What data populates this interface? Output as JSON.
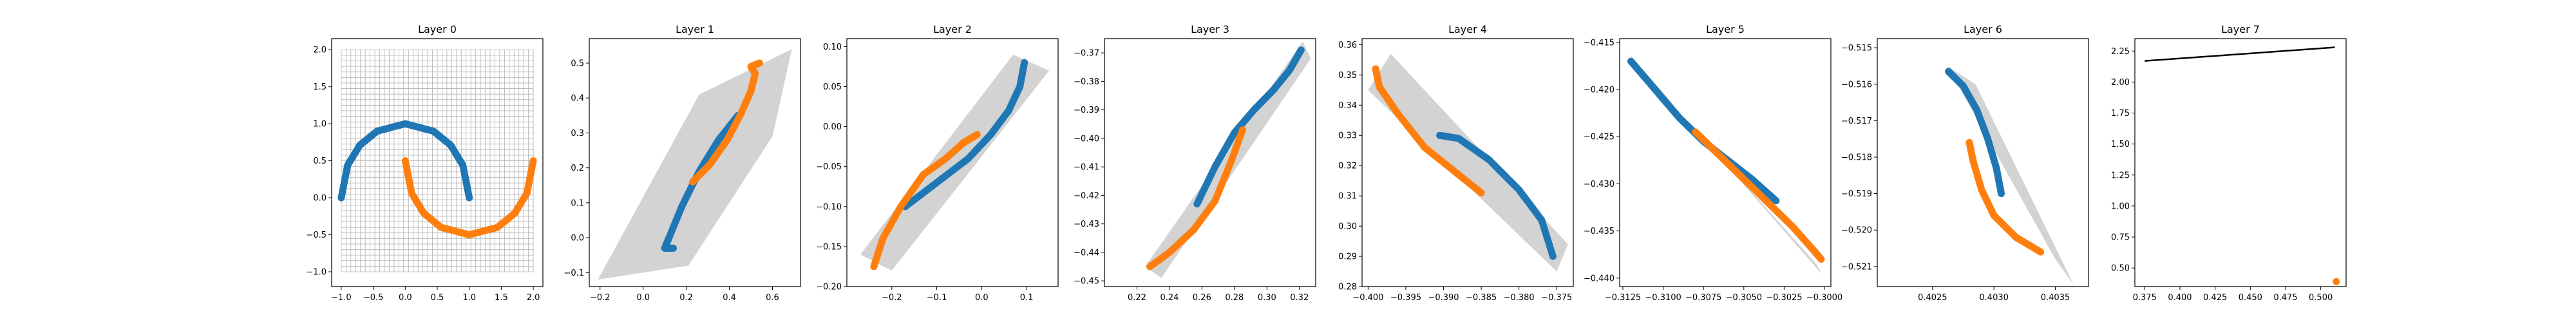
{
  "figure": {
    "background": "#ffffff",
    "blue": "#1f77b4",
    "orange": "#ff7f0e",
    "hull": "#d3d3d3",
    "grid": "#b0b0b0",
    "line": "#000000"
  },
  "chart_data": [
    {
      "type": "scatter",
      "title": "Layer 0",
      "xlim": [
        -1.15,
        2.15
      ],
      "ylim": [
        -1.2,
        2.15
      ],
      "xticks": [
        -1.0,
        -0.5,
        0.0,
        0.5,
        1.0,
        1.5,
        2.0
      ],
      "xtick_labels": [
        "−1.0",
        "−0.5",
        "0.0",
        "0.5",
        "1.0",
        "1.5",
        "2.0"
      ],
      "yticks": [
        -1.0,
        -0.5,
        0.0,
        0.5,
        1.0,
        1.5,
        2.0
      ],
      "ytick_labels": [
        "−1.0",
        "−0.5",
        "0.0",
        "0.5",
        "1.0",
        "1.5",
        "2.0"
      ],
      "grid": {
        "x_range": [
          -1.0,
          2.0
        ],
        "y_range": [
          -1.0,
          2.0
        ],
        "step": 0.075
      },
      "series": [
        {
          "color": "#1f77b4",
          "points": [
            [
              -1.0,
              0.0
            ],
            [
              -0.9,
              0.44
            ],
            [
              -0.71,
              0.71
            ],
            [
              -0.44,
              0.9
            ],
            [
              0.0,
              1.0
            ],
            [
              0.44,
              0.9
            ],
            [
              0.71,
              0.71
            ],
            [
              0.9,
              0.44
            ],
            [
              1.0,
              0.0
            ]
          ]
        },
        {
          "color": "#ff7f0e",
          "points": [
            [
              0.0,
              0.5
            ],
            [
              0.1,
              0.06
            ],
            [
              0.29,
              -0.21
            ],
            [
              0.56,
              -0.4
            ],
            [
              1.0,
              -0.5
            ],
            [
              1.44,
              -0.4
            ],
            [
              1.71,
              -0.21
            ],
            [
              1.9,
              0.06
            ],
            [
              2.0,
              0.5
            ]
          ]
        }
      ]
    },
    {
      "type": "scatter",
      "title": "Layer 1",
      "xlim": [
        -0.25,
        0.73
      ],
      "ylim": [
        -0.14,
        0.57
      ],
      "xticks": [
        -0.2,
        0.0,
        0.2,
        0.4,
        0.6
      ],
      "xtick_labels": [
        "−0.2",
        "0.0",
        "0.2",
        "0.4",
        "0.6"
      ],
      "yticks": [
        -0.1,
        0.0,
        0.1,
        0.2,
        0.3,
        0.4,
        0.5
      ],
      "ytick_labels": [
        "−0.1",
        "0.0",
        "0.1",
        "0.2",
        "0.3",
        "0.4",
        "0.5"
      ],
      "hull": [
        [
          -0.21,
          -0.12
        ],
        [
          0.26,
          0.41
        ],
        [
          0.69,
          0.54
        ],
        [
          0.6,
          0.29
        ],
        [
          0.21,
          -0.08
        ]
      ],
      "series": [
        {
          "color": "#1f77b4",
          "points": [
            [
              0.44,
              0.35
            ],
            [
              0.35,
              0.28
            ],
            [
              0.26,
              0.19
            ],
            [
              0.18,
              0.09
            ],
            [
              0.12,
              0.0
            ],
            [
              0.1,
              -0.03
            ],
            [
              0.14,
              -0.03
            ]
          ]
        },
        {
          "color": "#ff7f0e",
          "points": [
            [
              0.23,
              0.16
            ],
            [
              0.31,
              0.21
            ],
            [
              0.39,
              0.28
            ],
            [
              0.45,
              0.35
            ],
            [
              0.5,
              0.42
            ],
            [
              0.52,
              0.47
            ],
            [
              0.5,
              0.49
            ],
            [
              0.54,
              0.5
            ]
          ]
        }
      ]
    },
    {
      "type": "scatter",
      "title": "Layer 2",
      "xlim": [
        -0.3,
        0.17
      ],
      "ylim": [
        -0.2,
        0.11
      ],
      "xticks": [
        -0.2,
        -0.1,
        0.0,
        0.1
      ],
      "xtick_labels": [
        "−0.2",
        "−0.1",
        "0.0",
        "0.1"
      ],
      "yticks": [
        -0.2,
        -0.15,
        -0.1,
        -0.05,
        0.0,
        0.05,
        0.1
      ],
      "ytick_labels": [
        "−0.20",
        "−0.15",
        "−0.10",
        "−0.05",
        "0.00",
        "0.05",
        "0.10"
      ],
      "hull": [
        [
          -0.27,
          -0.16
        ],
        [
          -0.2,
          -0.18
        ],
        [
          0.15,
          0.07
        ],
        [
          0.07,
          0.09
        ]
      ],
      "series": [
        {
          "color": "#1f77b4",
          "points": [
            [
              -0.17,
              -0.1
            ],
            [
              -0.1,
              -0.07
            ],
            [
              -0.03,
              -0.04
            ],
            [
              0.02,
              -0.01
            ],
            [
              0.06,
              0.02
            ],
            [
              0.085,
              0.05
            ],
            [
              0.095,
              0.08
            ]
          ]
        },
        {
          "color": "#ff7f0e",
          "points": [
            [
              -0.24,
              -0.175
            ],
            [
              -0.22,
              -0.14
            ],
            [
              -0.18,
              -0.1
            ],
            [
              -0.13,
              -0.06
            ],
            [
              -0.08,
              -0.04
            ],
            [
              -0.04,
              -0.02
            ],
            [
              -0.01,
              -0.01
            ]
          ]
        }
      ]
    },
    {
      "type": "scatter",
      "title": "Layer 3",
      "xlim": [
        0.2,
        0.33
      ],
      "ylim": [
        -0.452,
        -0.365
      ],
      "xticks": [
        0.22,
        0.24,
        0.26,
        0.28,
        0.3,
        0.32
      ],
      "xtick_labels": [
        "0.22",
        "0.24",
        "0.26",
        "0.28",
        "0.30",
        "0.32"
      ],
      "yticks": [
        -0.45,
        -0.44,
        -0.43,
        -0.42,
        -0.41,
        -0.4,
        -0.39,
        -0.38,
        -0.37
      ],
      "ytick_labels": [
        "−0.45",
        "−0.44",
        "−0.43",
        "−0.42",
        "−0.41",
        "−0.40",
        "−0.39",
        "−0.38",
        "−0.37"
      ],
      "hull": [
        [
          0.225,
          -0.445
        ],
        [
          0.235,
          -0.449
        ],
        [
          0.327,
          -0.372
        ],
        [
          0.322,
          -0.366
        ]
      ],
      "series": [
        {
          "color": "#1f77b4",
          "points": [
            [
              0.257,
              -0.423
            ],
            [
              0.268,
              -0.41
            ],
            [
              0.28,
              -0.398
            ],
            [
              0.292,
              -0.39
            ],
            [
              0.304,
              -0.383
            ],
            [
              0.314,
              -0.376
            ],
            [
              0.321,
              -0.369
            ]
          ]
        },
        {
          "color": "#ff7f0e",
          "points": [
            [
              0.228,
              -0.445
            ],
            [
              0.24,
              -0.44
            ],
            [
              0.255,
              -0.432
            ],
            [
              0.268,
              -0.422
            ],
            [
              0.278,
              -0.408
            ],
            [
              0.285,
              -0.397
            ]
          ]
        }
      ]
    },
    {
      "type": "scatter",
      "title": "Layer 4",
      "xlim": [
        -0.4008,
        -0.3728
      ],
      "ylim": [
        0.28,
        0.362
      ],
      "xticks": [
        -0.4,
        -0.395,
        -0.39,
        -0.385,
        -0.38,
        -0.375
      ],
      "xtick_labels": [
        "−0.400",
        "−0.395",
        "−0.390",
        "−0.385",
        "−0.380",
        "−0.375"
      ],
      "yticks": [
        0.28,
        0.29,
        0.3,
        0.31,
        0.32,
        0.33,
        0.34,
        0.35,
        0.36
      ],
      "ytick_labels": [
        "0.28",
        "0.29",
        "0.30",
        "0.31",
        "0.32",
        "0.33",
        "0.34",
        "0.35",
        "0.36"
      ],
      "hull": [
        [
          -0.4,
          0.345
        ],
        [
          -0.397,
          0.357
        ],
        [
          -0.3735,
          0.294
        ],
        [
          -0.375,
          0.285
        ]
      ],
      "series": [
        {
          "color": "#1f77b4",
          "points": [
            [
              -0.3905,
              0.33
            ],
            [
              -0.388,
              0.329
            ],
            [
              -0.384,
              0.322
            ],
            [
              -0.38,
              0.312
            ],
            [
              -0.377,
              0.302
            ],
            [
              -0.3755,
              0.29
            ]
          ]
        },
        {
          "color": "#ff7f0e",
          "points": [
            [
              -0.399,
              0.352
            ],
            [
              -0.3985,
              0.346
            ],
            [
              -0.396,
              0.337
            ],
            [
              -0.3925,
              0.326
            ],
            [
              -0.3885,
              0.318
            ],
            [
              -0.385,
              0.311
            ]
          ]
        }
      ]
    },
    {
      "type": "scatter",
      "title": "Layer 5",
      "xlim": [
        -0.3127,
        -0.2996
      ],
      "ylim": [
        -0.4409,
        -0.4146
      ],
      "xticks": [
        -0.3125,
        -0.31,
        -0.3075,
        -0.305,
        -0.3025,
        -0.3
      ],
      "xtick_labels": [
        "−0.3125",
        "−0.3100",
        "−0.3075",
        "−0.3050",
        "−0.3025",
        "−0.3000"
      ],
      "yticks": [
        -0.44,
        -0.435,
        -0.43,
        -0.425,
        -0.42,
        -0.415
      ],
      "ytick_labels": [
        "−0.440",
        "−0.435",
        "−0.430",
        "−0.425",
        "−0.420",
        "−0.415"
      ],
      "hull": [
        [
          -0.3122,
          -0.4162
        ],
        [
          -0.3118,
          -0.4168
        ],
        [
          -0.3002,
          -0.4395
        ],
        [
          -0.3005,
          -0.4385
        ]
      ],
      "series": [
        {
          "color": "#1f77b4",
          "points": [
            [
              -0.312,
              -0.417
            ],
            [
              -0.3105,
              -0.42
            ],
            [
              -0.309,
              -0.423
            ],
            [
              -0.3075,
              -0.4255
            ],
            [
              -0.306,
              -0.4275
            ],
            [
              -0.3045,
              -0.4295
            ],
            [
              -0.303,
              -0.4318
            ]
          ]
        },
        {
          "color": "#ff7f0e",
          "points": [
            [
              -0.308,
              -0.4245
            ],
            [
              -0.3065,
              -0.427
            ],
            [
              -0.305,
              -0.4295
            ],
            [
              -0.3035,
              -0.432
            ],
            [
              -0.302,
              -0.4345
            ],
            [
              -0.3008,
              -0.4368
            ],
            [
              -0.3002,
              -0.438
            ]
          ]
        }
      ]
    },
    {
      "type": "scatter",
      "title": "Layer 6",
      "xlim": [
        0.40205,
        0.40377
      ],
      "ylim": [
        -0.52155,
        -0.51475
      ],
      "xticks": [
        0.4025,
        0.403,
        0.4035
      ],
      "xtick_labels": [
        "0.4025",
        "0.4030",
        "0.4035"
      ],
      "yticks": [
        -0.521,
        -0.52,
        -0.519,
        -0.518,
        -0.517,
        -0.516,
        -0.515
      ],
      "ytick_labels": [
        "−0.521",
        "−0.520",
        "−0.519",
        "−0.518",
        "−0.517",
        "−0.516",
        "−0.515"
      ],
      "hull": [
        [
          0.40262,
          -0.5155
        ],
        [
          0.40285,
          -0.516
        ],
        [
          0.40365,
          -0.5215
        ],
        [
          0.4035,
          -0.5208
        ]
      ],
      "series": [
        {
          "color": "#1f77b4",
          "points": [
            [
              0.40263,
              -0.51565
            ],
            [
              0.40275,
              -0.51605
            ],
            [
              0.40286,
              -0.5167
            ],
            [
              0.40295,
              -0.5175
            ],
            [
              0.40302,
              -0.5183
            ],
            [
              0.40306,
              -0.519
            ]
          ]
        },
        {
          "color": "#ff7f0e",
          "points": [
            [
              0.4028,
              -0.5176
            ],
            [
              0.40283,
              -0.5181
            ],
            [
              0.4029,
              -0.5189
            ],
            [
              0.403,
              -0.5196
            ],
            [
              0.40318,
              -0.5202
            ],
            [
              0.40338,
              -0.5206
            ]
          ]
        }
      ]
    },
    {
      "type": "scatter",
      "title": "Layer 7",
      "xlim": [
        0.368,
        0.518
      ],
      "ylim": [
        0.35,
        2.35
      ],
      "xticks": [
        0.375,
        0.4,
        0.425,
        0.45,
        0.475,
        0.5
      ],
      "xtick_labels": [
        "0.375",
        "0.400",
        "0.425",
        "0.450",
        "0.475",
        "0.500"
      ],
      "yticks": [
        0.5,
        0.75,
        1.0,
        1.25,
        1.5,
        1.75,
        2.0,
        2.25
      ],
      "ytick_labels": [
        "0.50",
        "0.75",
        "1.00",
        "1.25",
        "1.50",
        "1.75",
        "2.00",
        "2.25"
      ],
      "line": [
        [
          0.375,
          2.17
        ],
        [
          0.51,
          2.28
        ]
      ],
      "series": [
        {
          "color": "#ff7f0e",
          "points": [
            [
              0.511,
              0.39
            ]
          ]
        }
      ]
    }
  ]
}
